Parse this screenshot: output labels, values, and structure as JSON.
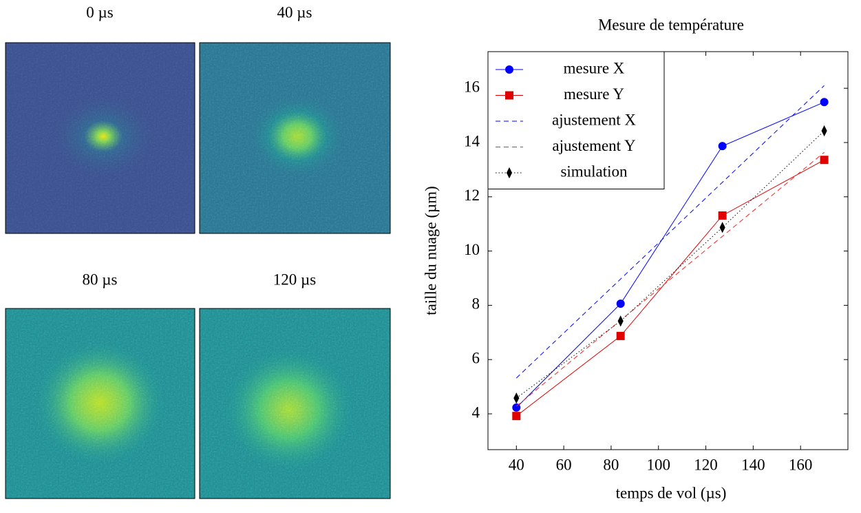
{
  "panels": [
    {
      "label": "0 µs"
    },
    {
      "label": "40 µs"
    },
    {
      "label": "80 µs"
    },
    {
      "label": "120 µs"
    }
  ],
  "chart_data": {
    "type": "line",
    "title": "Mesure de température",
    "x_label": "temps de vol (µs)",
    "y_label": "taille du nuage (µm)",
    "xlim": [
      28,
      180
    ],
    "ylim": [
      2.68,
      17.35
    ],
    "xticks": [
      40,
      60,
      80,
      100,
      120,
      140,
      160
    ],
    "yticks": [
      4,
      6,
      8,
      10,
      12,
      14,
      16
    ],
    "legend": "top-left",
    "series": [
      {
        "name": "mesure X",
        "color": "#0000ff",
        "line_style": "solid",
        "marker": "circle",
        "x": [
          40,
          84,
          127,
          170
        ],
        "values": [
          4.23,
          8.06,
          13.87,
          15.49
        ]
      },
      {
        "name": "mesure Y",
        "color": "#e00000",
        "line_style": "solid",
        "marker": "square",
        "x": [
          40,
          84,
          127,
          170
        ],
        "values": [
          3.92,
          6.87,
          11.31,
          13.36
        ]
      },
      {
        "name": "ajustement X",
        "color": "#0000ff",
        "line_style": "dashed",
        "marker": "none",
        "x": [
          40,
          170
        ],
        "values": [
          5.32,
          16.1
        ]
      },
      {
        "name": "ajustement Y",
        "color": "#ff2020",
        "line_style": "dashed",
        "marker": "none",
        "x": [
          40,
          170
        ],
        "values": [
          4.28,
          13.64
        ]
      },
      {
        "name": "simulation",
        "color": "#000000",
        "line_style": "dotted",
        "marker": "diamond",
        "x": [
          40,
          84,
          127,
          170
        ],
        "values": [
          4.58,
          7.42,
          10.87,
          14.43
        ]
      }
    ]
  }
}
